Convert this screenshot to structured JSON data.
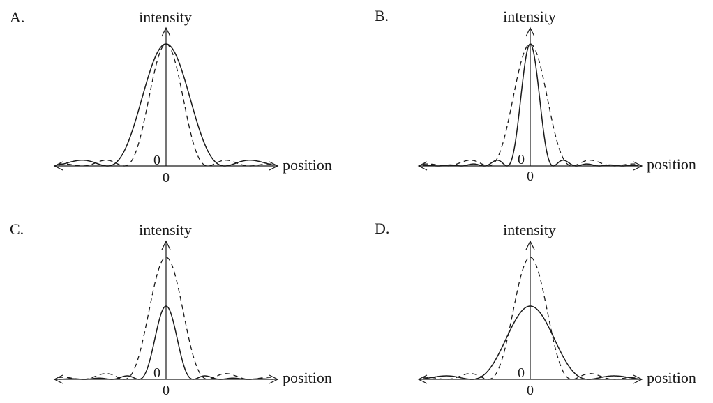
{
  "panels": [
    {
      "letter": "A.",
      "y_label": "intensity",
      "x_label": "position",
      "origin_y_label": "0",
      "origin_x_label": "0",
      "curves": {
        "dashed": {
          "peak": 1.0,
          "first_zero": 1.0
        },
        "solid": {
          "peak": 1.0,
          "first_zero": 1.4
        }
      }
    },
    {
      "letter": "B.",
      "y_label": "intensity",
      "x_label": "position",
      "origin_y_label": "0",
      "origin_x_label": "0",
      "curves": {
        "dashed": {
          "peak": 1.0,
          "first_zero": 1.0
        },
        "solid": {
          "peak": 1.0,
          "first_zero": 0.55
        }
      }
    },
    {
      "letter": "C.",
      "y_label": "intensity",
      "x_label": "position",
      "origin_y_label": "0",
      "origin_x_label": "0",
      "curves": {
        "dashed": {
          "peak": 1.0,
          "first_zero": 1.0
        },
        "solid": {
          "peak": 0.6,
          "first_zero": 0.65
        }
      }
    },
    {
      "letter": "D.",
      "y_label": "intensity",
      "x_label": "position",
      "origin_y_label": "0",
      "origin_x_label": "0",
      "curves": {
        "dashed": {
          "peak": 1.0,
          "first_zero": 1.0
        },
        "solid": {
          "peak": 0.6,
          "first_zero": 1.4
        }
      }
    }
  ]
}
